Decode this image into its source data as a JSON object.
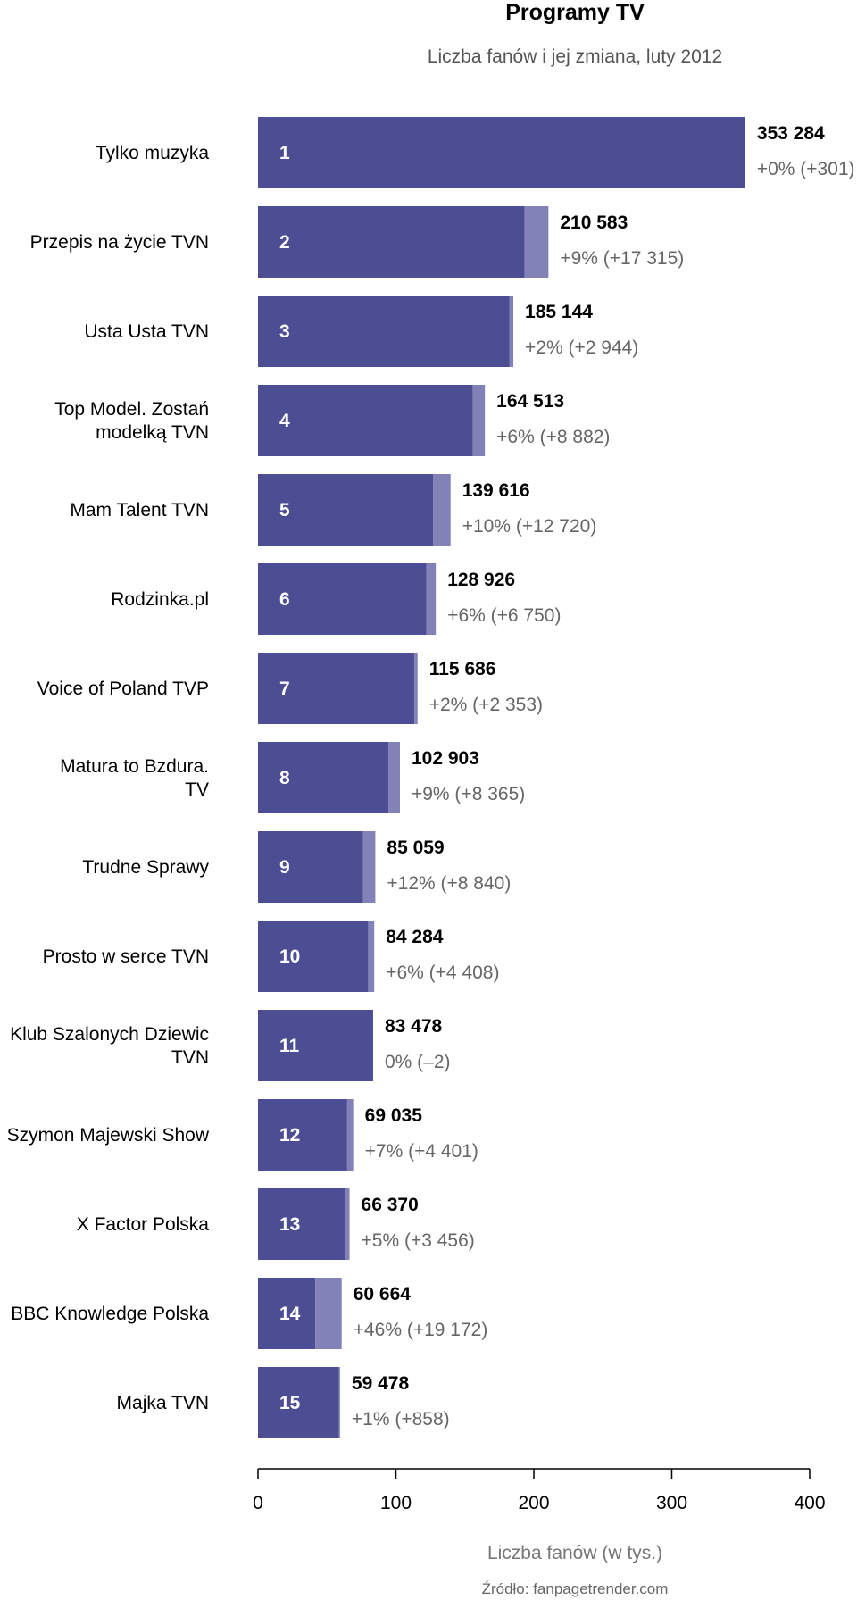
{
  "chart_data": {
    "type": "bar",
    "orientation": "horizontal",
    "title": "Programy TV",
    "subtitle": "Liczba fanów i jej zmiana, luty 2012",
    "xlabel": "Liczba fanów (w tys.)",
    "source": "Źródło: fanpagetrender.com",
    "xlim": [
      0,
      400
    ],
    "xticks": [
      "0",
      "100",
      "200",
      "300",
      "400"
    ],
    "grid": false,
    "legend": "none",
    "colors": {
      "base": "#4d4d94",
      "change": "#8282b8",
      "rank_text": "#ffffff",
      "value_text": "#000000",
      "change_text": "#666666"
    },
    "categories": [
      "Tylko muzyka",
      "Przepis na życie TVN",
      "Usta Usta TVN",
      "Top Model. Zostań modelką TVN",
      "Mam Talent TVN",
      "Rodzinka.pl",
      "Voice of Poland TVP",
      "Matura to Bzdura. TV",
      "Trudne Sprawy",
      "Prosto w serce TVN",
      "Klub Szalonych Dziewic TVN",
      "Szymon Majewski Show",
      "X Factor Polska",
      "BBC Knowledge Polska",
      "Majka TVN"
    ],
    "category_lines": [
      [
        "Tylko muzyka"
      ],
      [
        "Przepis na życie TVN"
      ],
      [
        "Usta Usta TVN"
      ],
      [
        "Top Model. Zostań",
        "modelką TVN"
      ],
      [
        "Mam Talent TVN"
      ],
      [
        "Rodzinka.pl"
      ],
      [
        "Voice of Poland TVP"
      ],
      [
        "Matura to Bzdura.",
        "TV"
      ],
      [
        "Trudne Sprawy"
      ],
      [
        "Prosto w serce TVN"
      ],
      [
        "Klub Szalonych Dziewic",
        "TVN"
      ],
      [
        "Szymon Majewski Show"
      ],
      [
        "X Factor Polska"
      ],
      [
        "BBC Knowledge Polska"
      ],
      [
        "Majka TVN"
      ]
    ],
    "ranks": [
      "1",
      "2",
      "3",
      "4",
      "5",
      "6",
      "7",
      "8",
      "9",
      "10",
      "11",
      "12",
      "13",
      "14",
      "15"
    ],
    "values": [
      353284,
      210583,
      185144,
      164513,
      139616,
      128926,
      115686,
      102903,
      85059,
      84284,
      83478,
      69035,
      66370,
      60664,
      59478
    ],
    "changes": [
      301,
      17315,
      2944,
      8882,
      12720,
      6750,
      2353,
      8365,
      8840,
      4408,
      -2,
      4401,
      3456,
      19172,
      858
    ],
    "value_labels": [
      "353 284",
      "210 583",
      "185 144",
      "164 513",
      "139 616",
      "128 926",
      "115 686",
      "102 903",
      "85 059",
      "84 284",
      "83 478",
      "69 035",
      "66 370",
      "60 664",
      "59 478"
    ],
    "change_labels": [
      "+0% (+301)",
      "+9% (+17 315)",
      "+2% (+2 944)",
      "+6% (+8 882)",
      "+10% (+12 720)",
      "+6% (+6 750)",
      "+2% (+2 353)",
      "+9% (+8 365)",
      "+12% (+8 840)",
      "+6% (+4 408)",
      "0% (–2)",
      "+7% (+4 401)",
      "+5% (+3 456)",
      "+46% (+19 172)",
      "+1% (+858)"
    ]
  }
}
